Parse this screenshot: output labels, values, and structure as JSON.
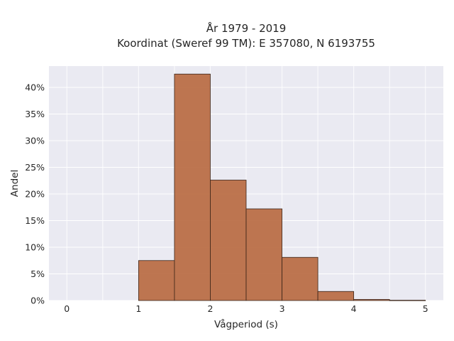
{
  "chart_data": {
    "type": "bar",
    "title_line1": "År 1979 - 2019",
    "title_line2": "Koordinat (Sweref 99 TM): E 357080, N 6193755",
    "xlabel": "Vågperiod (s)",
    "ylabel": "Andel",
    "xlim": [
      -0.25,
      5.25
    ],
    "ylim": [
      0,
      0.44
    ],
    "xticks": [
      0,
      1,
      2,
      3,
      4,
      5
    ],
    "xtick_labels": [
      "0",
      "1",
      "2",
      "3",
      "4",
      "5"
    ],
    "yticks": [
      0,
      0.05,
      0.1,
      0.15,
      0.2,
      0.25,
      0.3,
      0.35,
      0.4
    ],
    "ytick_labels": [
      "0%",
      "5%",
      "10%",
      "15%",
      "20%",
      "25%",
      "30%",
      "35%",
      "40%"
    ],
    "grid": true,
    "bar_color": "#b86a42",
    "bins": [
      {
        "x0": 1.0,
        "x1": 1.5,
        "value": 0.075
      },
      {
        "x0": 1.5,
        "x1": 2.0,
        "value": 0.425
      },
      {
        "x0": 2.0,
        "x1": 2.5,
        "value": 0.226
      },
      {
        "x0": 2.5,
        "x1": 3.0,
        "value": 0.172
      },
      {
        "x0": 3.0,
        "x1": 3.5,
        "value": 0.081
      },
      {
        "x0": 3.5,
        "x1": 4.0,
        "value": 0.017
      },
      {
        "x0": 4.0,
        "x1": 4.5,
        "value": 0.002
      },
      {
        "x0": 4.5,
        "x1": 5.0,
        "value": 0.0005
      }
    ]
  }
}
